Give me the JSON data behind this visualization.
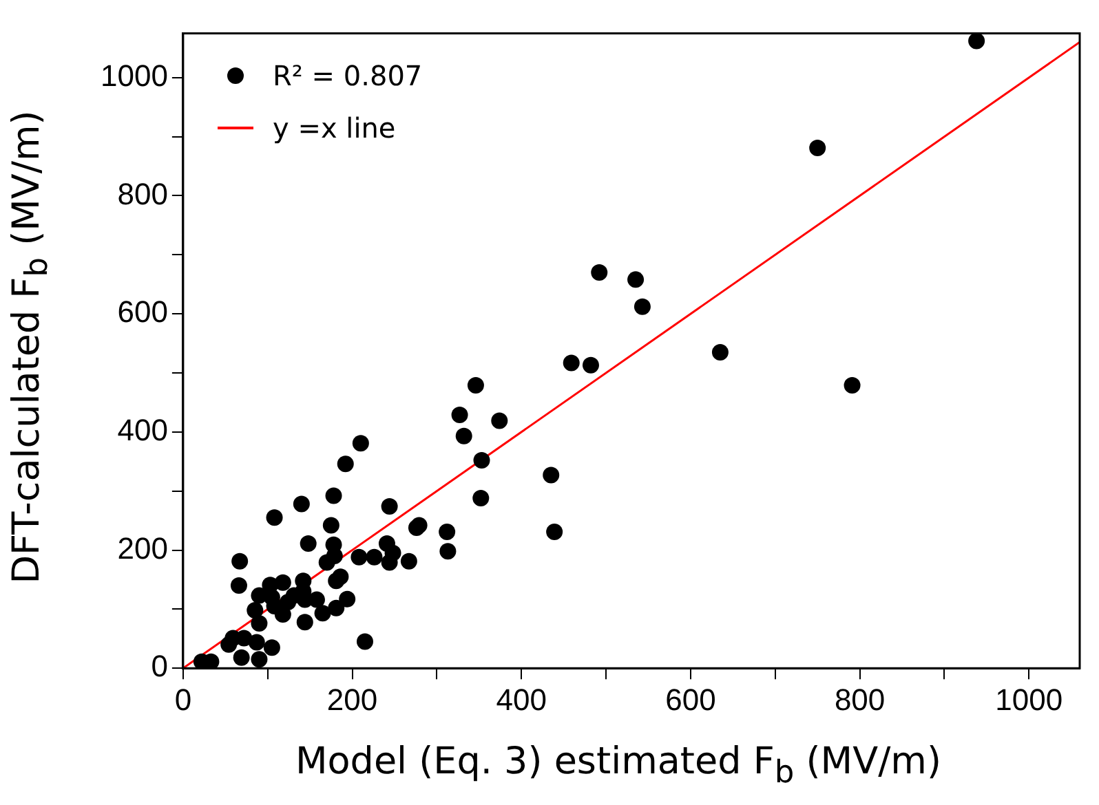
{
  "chart_data": {
    "type": "scatter",
    "xlabel": "Model (Eq. 3) estimated F$_{b}$ (MV/m)",
    "ylabel": "DFT-calculated F$_{b}$ (MV/m)",
    "xlim": [
      0,
      1060
    ],
    "ylim": [
      0,
      1075
    ],
    "xticks": [
      0,
      {
        "value": 100,
        "label": null
      },
      200,
      {
        "value": 300,
        "label": null
      },
      400,
      {
        "value": 500,
        "label": null
      },
      600,
      {
        "value": 700,
        "label": null
      },
      800,
      {
        "value": 900,
        "label": null
      },
      1000
    ],
    "yticks": [
      0,
      {
        "value": 100,
        "label": null
      },
      200,
      {
        "value": 300,
        "label": null
      },
      400,
      {
        "value": 500,
        "label": null
      },
      600,
      {
        "value": 700,
        "label": null
      },
      800,
      {
        "value": 900,
        "label": null
      },
      1000
    ],
    "grid": false,
    "legend": "top left",
    "marker": "circle",
    "series": [
      {
        "name": "R² = 0.807",
        "color": "#000000",
        "x": [
          210,
          192,
          108,
          140,
          178,
          175,
          244,
          279,
          276,
          67,
          66,
          148,
          178,
          179,
          241,
          248,
          244,
          267,
          226,
          208,
          170,
          186,
          181,
          194,
          181,
          165,
          144,
          144,
          158,
          142,
          142,
          131,
          124,
          118,
          103,
          90,
          105,
          108,
          118,
          85,
          90,
          72,
          59,
          54,
          87,
          105,
          69,
          90,
          22,
          33,
          215,
          492,
          535,
          543,
          459,
          482,
          635,
          791,
          346,
          327,
          332,
          374,
          353,
          352,
          435,
          439,
          312,
          313,
          938,
          750
        ],
        "values": [
          381,
          346,
          255,
          278,
          292,
          242,
          274,
          242,
          238,
          181,
          140,
          211,
          209,
          190,
          211,
          195,
          179,
          181,
          188,
          188,
          179,
          155,
          148,
          117,
          102,
          93,
          116,
          78,
          116,
          148,
          130,
          123,
          112,
          145,
          141,
          123,
          120,
          105,
          91,
          98,
          76,
          51,
          51,
          40,
          44,
          35,
          18,
          15,
          11,
          11,
          45,
          670,
          658,
          612,
          517,
          513,
          535,
          479,
          479,
          429,
          393,
          419,
          352,
          288,
          327,
          231,
          231,
          198,
          1062,
          881
        ]
      },
      {
        "name": "y =x line",
        "type": "line",
        "color": "#ff0000",
        "marker": "none",
        "line_style": "solid",
        "x": [
          0,
          1060
        ],
        "values": [
          0,
          1060
        ]
      }
    ]
  }
}
